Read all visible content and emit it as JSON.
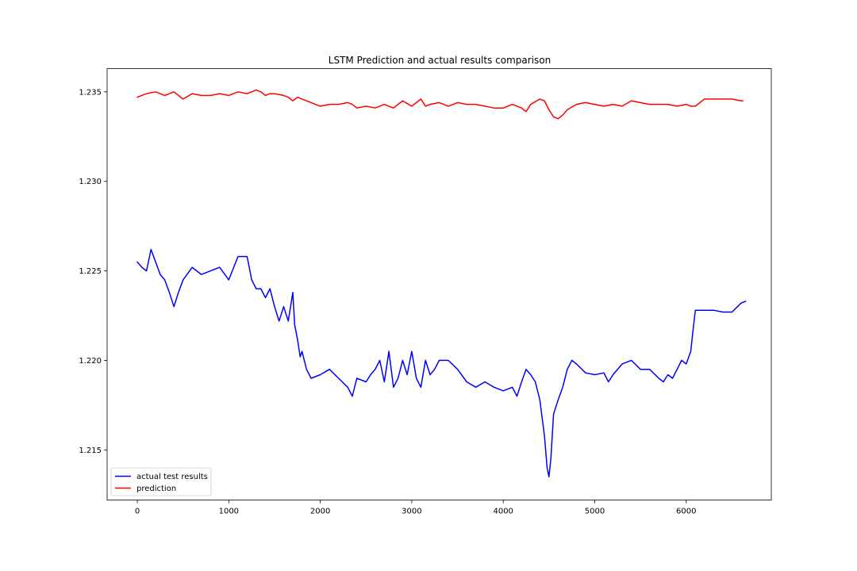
{
  "chart_data": {
    "type": "line",
    "title": "LSTM Prediction and actual results comparison",
    "xlabel": "",
    "ylabel": "",
    "xlim": [
      -330,
      6930
    ],
    "ylim": [
      1.2122,
      1.2363
    ],
    "x_ticks": [
      0,
      1000,
      2000,
      3000,
      4000,
      5000,
      6000
    ],
    "x_tick_labels": [
      "0",
      "1000",
      "2000",
      "3000",
      "4000",
      "5000",
      "6000"
    ],
    "y_ticks": [
      1.215,
      1.22,
      1.225,
      1.23,
      1.235
    ],
    "y_tick_labels": [
      "1.215",
      "1.220",
      "1.225",
      "1.230",
      "1.235"
    ],
    "grid": false,
    "legend_position": "lower-left",
    "series": [
      {
        "name": "actual test results",
        "color": "#0000ff",
        "x": [
          0,
          50,
          100,
          150,
          200,
          250,
          300,
          350,
          400,
          450,
          500,
          600,
          700,
          800,
          900,
          1000,
          1100,
          1200,
          1250,
          1300,
          1350,
          1400,
          1450,
          1500,
          1550,
          1600,
          1650,
          1700,
          1720,
          1750,
          1780,
          1800,
          1850,
          1900,
          2000,
          2100,
          2200,
          2300,
          2350,
          2400,
          2500,
          2550,
          2600,
          2650,
          2700,
          2750,
          2800,
          2850,
          2900,
          2950,
          3000,
          3050,
          3100,
          3150,
          3200,
          3250,
          3300,
          3400,
          3500,
          3600,
          3700,
          3800,
          3900,
          4000,
          4100,
          4150,
          4200,
          4250,
          4300,
          4350,
          4400,
          4450,
          4480,
          4500,
          4520,
          4550,
          4600,
          4650,
          4700,
          4750,
          4800,
          4900,
          5000,
          5100,
          5150,
          5200,
          5300,
          5400,
          5500,
          5600,
          5700,
          5750,
          5800,
          5850,
          5900,
          5950,
          6000,
          6050,
          6070,
          6100,
          6200,
          6300,
          6400,
          6500,
          6600,
          6650
        ],
        "y": [
          1.2255,
          1.2252,
          1.225,
          1.2262,
          1.2255,
          1.2248,
          1.2245,
          1.2238,
          1.223,
          1.2238,
          1.2245,
          1.2252,
          1.2248,
          1.225,
          1.2252,
          1.2245,
          1.2258,
          1.2258,
          1.2245,
          1.224,
          1.224,
          1.2235,
          1.224,
          1.223,
          1.2222,
          1.223,
          1.2222,
          1.2238,
          1.222,
          1.2212,
          1.2202,
          1.2205,
          1.2195,
          1.219,
          1.2192,
          1.2195,
          1.219,
          1.2185,
          1.218,
          1.219,
          1.2188,
          1.2192,
          1.2195,
          1.22,
          1.2188,
          1.2205,
          1.2185,
          1.219,
          1.22,
          1.2192,
          1.2205,
          1.219,
          1.2185,
          1.22,
          1.2192,
          1.2195,
          1.22,
          1.22,
          1.2195,
          1.2188,
          1.2185,
          1.2188,
          1.2185,
          1.2183,
          1.2185,
          1.218,
          1.2188,
          1.2195,
          1.2192,
          1.2188,
          1.2178,
          1.2158,
          1.214,
          1.2135,
          1.2145,
          1.217,
          1.2178,
          1.2185,
          1.2195,
          1.22,
          1.2198,
          1.2193,
          1.2192,
          1.2193,
          1.2188,
          1.2192,
          1.2198,
          1.22,
          1.2195,
          1.2195,
          1.219,
          1.2188,
          1.2192,
          1.219,
          1.2195,
          1.22,
          1.2198,
          1.2205,
          1.2215,
          1.2228,
          1.2228,
          1.2228,
          1.2227,
          1.2227,
          1.2232,
          1.2233
        ]
      },
      {
        "name": "prediction",
        "color": "#ff0000",
        "x": [
          0,
          100,
          200,
          300,
          400,
          500,
          600,
          700,
          800,
          900,
          1000,
          1100,
          1200,
          1250,
          1300,
          1350,
          1400,
          1450,
          1500,
          1600,
          1650,
          1700,
          1750,
          1800,
          1900,
          2000,
          2100,
          2200,
          2300,
          2350,
          2400,
          2500,
          2600,
          2700,
          2750,
          2800,
          2900,
          3000,
          3100,
          3150,
          3200,
          3300,
          3400,
          3500,
          3600,
          3700,
          3800,
          3900,
          4000,
          4100,
          4200,
          4250,
          4300,
          4400,
          4450,
          4500,
          4550,
          4600,
          4650,
          4700,
          4800,
          4900,
          5000,
          5100,
          5200,
          5300,
          5400,
          5500,
          5600,
          5700,
          5800,
          5900,
          6000,
          6050,
          6100,
          6200,
          6300,
          6400,
          6500,
          6600,
          6620
        ],
        "y": [
          1.2347,
          1.2349,
          1.235,
          1.2348,
          1.235,
          1.2346,
          1.2349,
          1.2348,
          1.2348,
          1.2349,
          1.2348,
          1.235,
          1.2349,
          1.235,
          1.2351,
          1.235,
          1.2348,
          1.2349,
          1.2349,
          1.2348,
          1.2347,
          1.2345,
          1.2347,
          1.2346,
          1.2344,
          1.2342,
          1.2343,
          1.2343,
          1.2344,
          1.2343,
          1.2341,
          1.2342,
          1.2341,
          1.2343,
          1.2342,
          1.2341,
          1.2345,
          1.2342,
          1.2346,
          1.2342,
          1.2343,
          1.2344,
          1.2342,
          1.2344,
          1.2343,
          1.2343,
          1.2342,
          1.2341,
          1.2341,
          1.2343,
          1.2341,
          1.2339,
          1.2343,
          1.2346,
          1.2345,
          1.234,
          1.2336,
          1.2335,
          1.2337,
          1.234,
          1.2343,
          1.2344,
          1.2343,
          1.2342,
          1.2343,
          1.2342,
          1.2345,
          1.2344,
          1.2343,
          1.2343,
          1.2343,
          1.2342,
          1.2343,
          1.2342,
          1.2342,
          1.2346,
          1.2346,
          1.2346,
          1.2346,
          1.2345,
          1.2345
        ]
      }
    ]
  }
}
